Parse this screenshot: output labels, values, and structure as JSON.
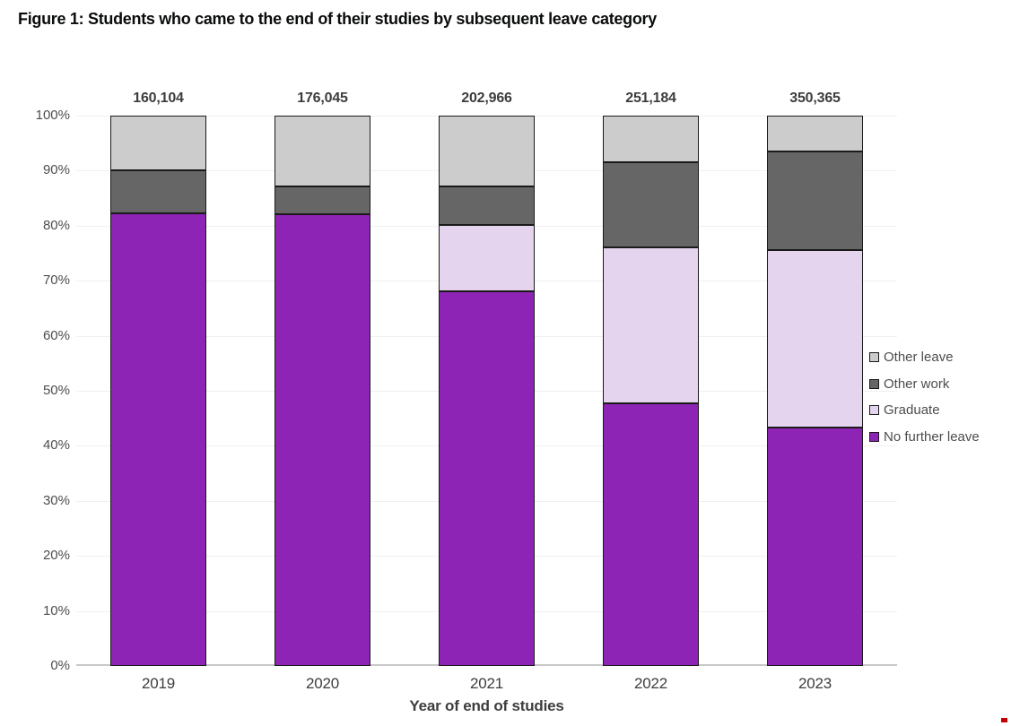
{
  "figure_title": "Figure 1: Students who came to the end of their studies by subsequent leave category",
  "chart_data": {
    "type": "bar",
    "subtype": "stacked_100_percent",
    "title": "Figure 1: Students who came to the end of their studies by subsequent leave category",
    "xlabel": "Year of end of studies",
    "ylabel": "",
    "ylim": [
      0,
      100
    ],
    "grid": true,
    "legend_position": "right",
    "categories": [
      "2019",
      "2020",
      "2021",
      "2022",
      "2023"
    ],
    "bar_totals": [
      "160,104",
      "176,045",
      "202,966",
      "251,184",
      "350,365"
    ],
    "y_ticks": [
      "0%",
      "10%",
      "20%",
      "30%",
      "40%",
      "50%",
      "60%",
      "70%",
      "80%",
      "90%",
      "100%"
    ],
    "series": [
      {
        "name": "No further leave",
        "color": "#8e24b5",
        "values": [
          82.3,
          82.1,
          68.1,
          47.8,
          43.4
        ]
      },
      {
        "name": "Graduate",
        "color": "#e5d4ee",
        "values": [
          0,
          0,
          12.1,
          28.3,
          32.2
        ]
      },
      {
        "name": "Other work",
        "color": "#666666",
        "values": [
          7.7,
          5.0,
          6.9,
          15.5,
          17.9
        ]
      },
      {
        "name": "Other leave",
        "color": "#cccccc",
        "values": [
          10.0,
          12.9,
          12.9,
          8.4,
          6.5
        ]
      }
    ],
    "legend_order": [
      "Other leave",
      "Other work",
      "Graduate",
      "No further leave"
    ]
  },
  "colors": {
    "segment_border": "#1a1a1a",
    "gridline": "#f0f0f0",
    "baseline": "#c9c9c9",
    "axis_text": "#4d4d4d",
    "dark_text": "#3d3d3d",
    "title_text": "#0b0c0c",
    "artifact_red": "#c00000"
  }
}
